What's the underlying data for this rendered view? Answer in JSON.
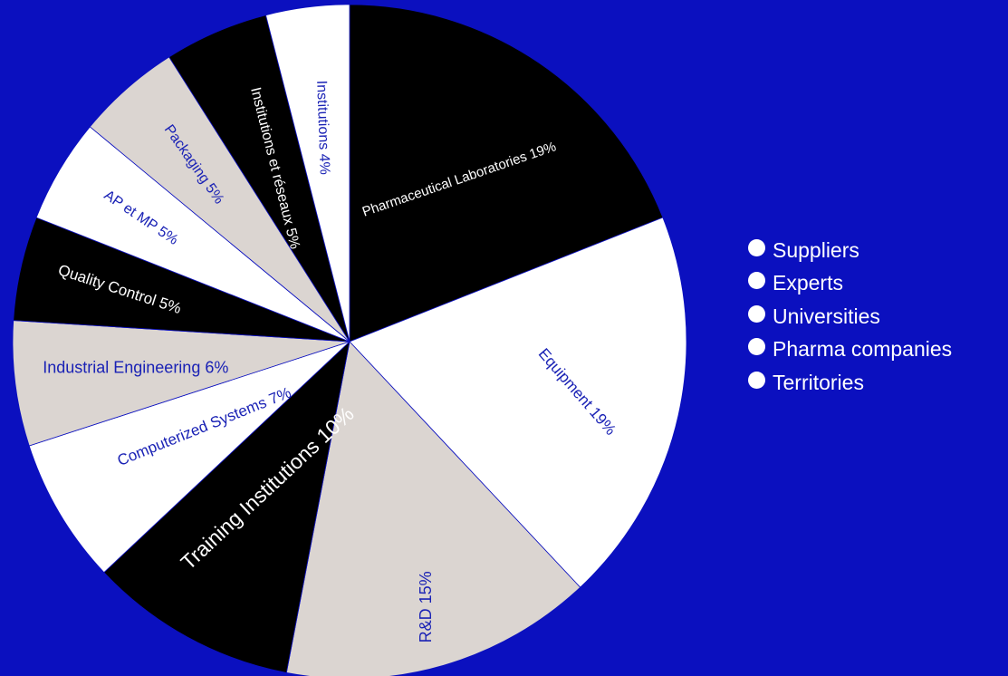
{
  "chart_data": {
    "type": "pie",
    "title": "",
    "slices": [
      {
        "label": "Pharmaceutical Laboratories 19%",
        "value": 19,
        "color": "#000000",
        "label_color": "#ffffff"
      },
      {
        "label": "Equipment 19%",
        "value": 19,
        "color": "#ffffff",
        "label_color": "#1a22b5"
      },
      {
        "label": "R&D 15%",
        "value": 15,
        "color": "#dbd5d1",
        "label_color": "#1a22b5"
      },
      {
        "label": "Training Institutions 10%",
        "value": 10,
        "color": "#000000",
        "label_color": "#ffffff"
      },
      {
        "label": "Computerized Systems 7%",
        "value": 7,
        "color": "#ffffff",
        "label_color": "#1a22b5"
      },
      {
        "label": "Industrial Engineering 6%",
        "value": 6,
        "color": "#dbd5d1",
        "label_color": "#1a22b5"
      },
      {
        "label": "Quality Control 5%",
        "value": 5,
        "color": "#000000",
        "label_color": "#ffffff"
      },
      {
        "label": "AP et MP 5%",
        "value": 5,
        "color": "#ffffff",
        "label_color": "#1a22b5"
      },
      {
        "label": "Packaging 5%",
        "value": 5,
        "color": "#dbd5d1",
        "label_color": "#1a22b5"
      },
      {
        "label": "Institutions et réseaux 5%",
        "value": 5,
        "color": "#000000",
        "label_color": "#ffffff"
      },
      {
        "label": "Institutions 4%",
        "value": 4,
        "color": "#ffffff",
        "label_color": "#1a22b5"
      }
    ],
    "legend": {
      "position": "right",
      "items": [
        "Suppliers",
        "Experts",
        "Universities",
        "Pharma companies",
        "Territories"
      ]
    }
  },
  "colors": {
    "background": "#0b10bf",
    "legend_text": "#ffffff"
  }
}
